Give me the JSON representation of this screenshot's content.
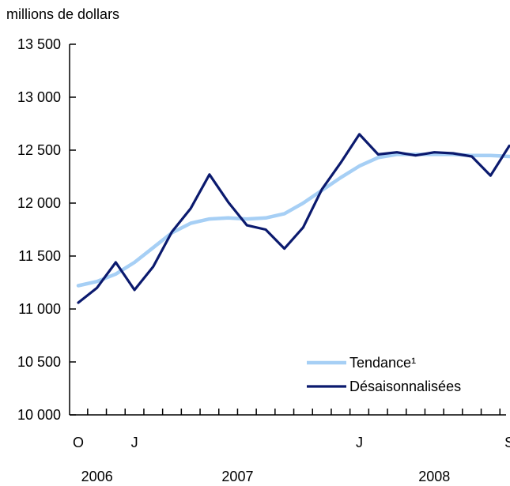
{
  "chart_data": {
    "type": "line",
    "title": "",
    "units_label": "millions de dollars",
    "xlabel": "",
    "ylabel": "",
    "ylim": [
      10000,
      13500
    ],
    "yticks": [
      10000,
      10500,
      11000,
      11500,
      12000,
      12500,
      13000,
      13500
    ],
    "ytick_labels": [
      "10 000",
      "10 500",
      "11 000",
      "11 500",
      "12 000",
      "12 500",
      "13 000",
      "13 500"
    ],
    "x": [
      "2006-10",
      "2006-11",
      "2006-12",
      "2007-01",
      "2007-02",
      "2007-03",
      "2007-04",
      "2007-05",
      "2007-06",
      "2007-07",
      "2007-08",
      "2007-09",
      "2007-10",
      "2007-11",
      "2007-12",
      "2008-01",
      "2008-02",
      "2008-03",
      "2008-04",
      "2008-05",
      "2008-06",
      "2008-07",
      "2008-08",
      "2008-09"
    ],
    "x_tick_labels": [
      {
        "month": "2006-10",
        "label": "O"
      },
      {
        "month": "2007-01",
        "label": "J"
      },
      {
        "month": "2008-01",
        "label": "J"
      },
      {
        "month": "2008-09",
        "label": "S"
      }
    ],
    "year_labels": [
      {
        "label": "2006",
        "months": [
          "2006-10",
          "2006-12"
        ]
      },
      {
        "label": "2007",
        "months": [
          "2007-01",
          "2007-12"
        ]
      },
      {
        "label": "2008",
        "months": [
          "2008-01",
          "2008-09"
        ]
      }
    ],
    "series": [
      {
        "name": "Tendance¹",
        "color": "#a6cff5",
        "values": [
          11220,
          11260,
          11330,
          11440,
          11580,
          11720,
          11810,
          11850,
          11860,
          11850,
          11860,
          11900,
          12000,
          12120,
          12240,
          12350,
          12430,
          12460,
          12460,
          12460,
          12460,
          12450,
          12450,
          12440
        ]
      },
      {
        "name": "Désaisonnalisées",
        "color": "#0b1a6e",
        "values": [
          11060,
          11200,
          11440,
          11180,
          11400,
          11730,
          11950,
          12270,
          12010,
          11790,
          11750,
          11570,
          11770,
          12130,
          12380,
          12650,
          12460,
          12480,
          12450,
          12480,
          12470,
          12440,
          12260,
          12540
        ]
      }
    ],
    "grid": false,
    "legend_position": "bottom-right"
  }
}
